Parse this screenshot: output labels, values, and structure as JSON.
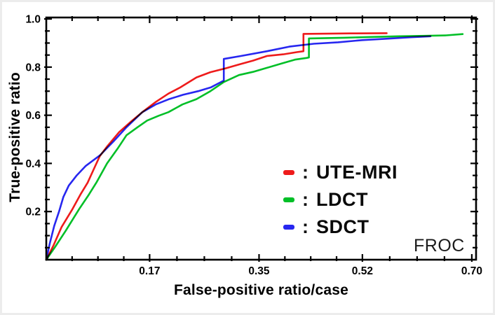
{
  "page": {
    "background": "#ffffff",
    "border_color": "#ececec"
  },
  "chart_data": {
    "type": "line",
    "title": "",
    "xlabel": "False-positive ratio/case",
    "ylabel": "True-positive ratio",
    "corner_label": "FROC",
    "xlim": [
      0,
      0.707
    ],
    "ylim": [
      0,
      1.006
    ],
    "grid": false,
    "axis_color": "#000000",
    "legend_position": "inside lower right",
    "x_ticks": [
      {
        "value": 0.17,
        "label": "0.17"
      },
      {
        "value": 0.35,
        "label": "0.35"
      },
      {
        "value": 0.52,
        "label": "0.52"
      },
      {
        "value": 0.7,
        "label": "0.70"
      }
    ],
    "y_ticks": [
      {
        "value": 0.2,
        "label": "0.2"
      },
      {
        "value": 0.4,
        "label": "0.4"
      },
      {
        "value": 0.6,
        "label": "0.6"
      },
      {
        "value": 0.8,
        "label": "0.8"
      },
      {
        "value": 1.0,
        "label": "1.0"
      }
    ],
    "minor_ticks_per_interval": 3,
    "legend": {
      "separator": ":",
      "entries": [
        {
          "label": "UTE-MRI",
          "color": "#ee1b1b"
        },
        {
          "label": "LDCT",
          "color": "#00bf27"
        },
        {
          "label": "SDCT",
          "color": "#2727f0"
        }
      ]
    },
    "series": [
      {
        "name": "UTE-MRI",
        "color": "#ee1b1b",
        "points": [
          [
            0,
            0
          ],
          [
            0.012,
            0.06
          ],
          [
            0.025,
            0.135
          ],
          [
            0.043,
            0.21
          ],
          [
            0.056,
            0.27
          ],
          [
            0.068,
            0.32
          ],
          [
            0.078,
            0.375
          ],
          [
            0.088,
            0.43
          ],
          [
            0.1,
            0.47
          ],
          [
            0.12,
            0.53
          ],
          [
            0.14,
            0.575
          ],
          [
            0.158,
            0.613
          ],
          [
            0.18,
            0.655
          ],
          [
            0.201,
            0.69
          ],
          [
            0.22,
            0.715
          ],
          [
            0.247,
            0.757
          ],
          [
            0.27,
            0.779
          ],
          [
            0.295,
            0.795
          ],
          [
            0.317,
            0.811
          ],
          [
            0.34,
            0.827
          ],
          [
            0.363,
            0.846
          ],
          [
            0.39,
            0.853
          ],
          [
            0.412,
            0.862
          ],
          [
            0.423,
            0.866
          ],
          [
            0.423,
            0.938
          ],
          [
            0.5,
            0.94
          ],
          [
            0.56,
            0.941
          ]
        ]
      },
      {
        "name": "LDCT",
        "color": "#00bf27",
        "points": [
          [
            0,
            0
          ],
          [
            0.015,
            0.055
          ],
          [
            0.032,
            0.12
          ],
          [
            0.054,
            0.21
          ],
          [
            0.07,
            0.27
          ],
          [
            0.083,
            0.323
          ],
          [
            0.1,
            0.4
          ],
          [
            0.117,
            0.46
          ],
          [
            0.132,
            0.517
          ],
          [
            0.15,
            0.55
          ],
          [
            0.166,
            0.578
          ],
          [
            0.185,
            0.598
          ],
          [
            0.201,
            0.613
          ],
          [
            0.224,
            0.645
          ],
          [
            0.247,
            0.667
          ],
          [
            0.27,
            0.7
          ],
          [
            0.292,
            0.738
          ],
          [
            0.317,
            0.767
          ],
          [
            0.34,
            0.78
          ],
          [
            0.363,
            0.797
          ],
          [
            0.387,
            0.815
          ],
          [
            0.409,
            0.831
          ],
          [
            0.428,
            0.838
          ],
          [
            0.432,
            0.84
          ],
          [
            0.432,
            0.919
          ],
          [
            0.49,
            0.922
          ],
          [
            0.53,
            0.925
          ],
          [
            0.58,
            0.928
          ],
          [
            0.63,
            0.93
          ],
          [
            0.658,
            0.932
          ],
          [
            0.685,
            0.937
          ]
        ]
      },
      {
        "name": "SDCT",
        "color": "#2727f0",
        "points": [
          [
            0,
            0
          ],
          [
            0.006,
            0.07
          ],
          [
            0.013,
            0.14
          ],
          [
            0.021,
            0.2
          ],
          [
            0.028,
            0.26
          ],
          [
            0.037,
            0.308
          ],
          [
            0.05,
            0.35
          ],
          [
            0.065,
            0.39
          ],
          [
            0.088,
            0.433
          ],
          [
            0.11,
            0.49
          ],
          [
            0.132,
            0.55
          ],
          [
            0.158,
            0.613
          ],
          [
            0.18,
            0.645
          ],
          [
            0.201,
            0.666
          ],
          [
            0.225,
            0.685
          ],
          [
            0.25,
            0.7
          ],
          [
            0.271,
            0.716
          ],
          [
            0.292,
            0.744
          ],
          [
            0.292,
            0.834
          ],
          [
            0.32,
            0.846
          ],
          [
            0.363,
            0.866
          ],
          [
            0.4,
            0.885
          ],
          [
            0.44,
            0.897
          ],
          [
            0.48,
            0.903
          ],
          [
            0.52,
            0.912
          ],
          [
            0.56,
            0.918
          ],
          [
            0.6,
            0.924
          ],
          [
            0.632,
            0.928
          ]
        ]
      }
    ]
  }
}
